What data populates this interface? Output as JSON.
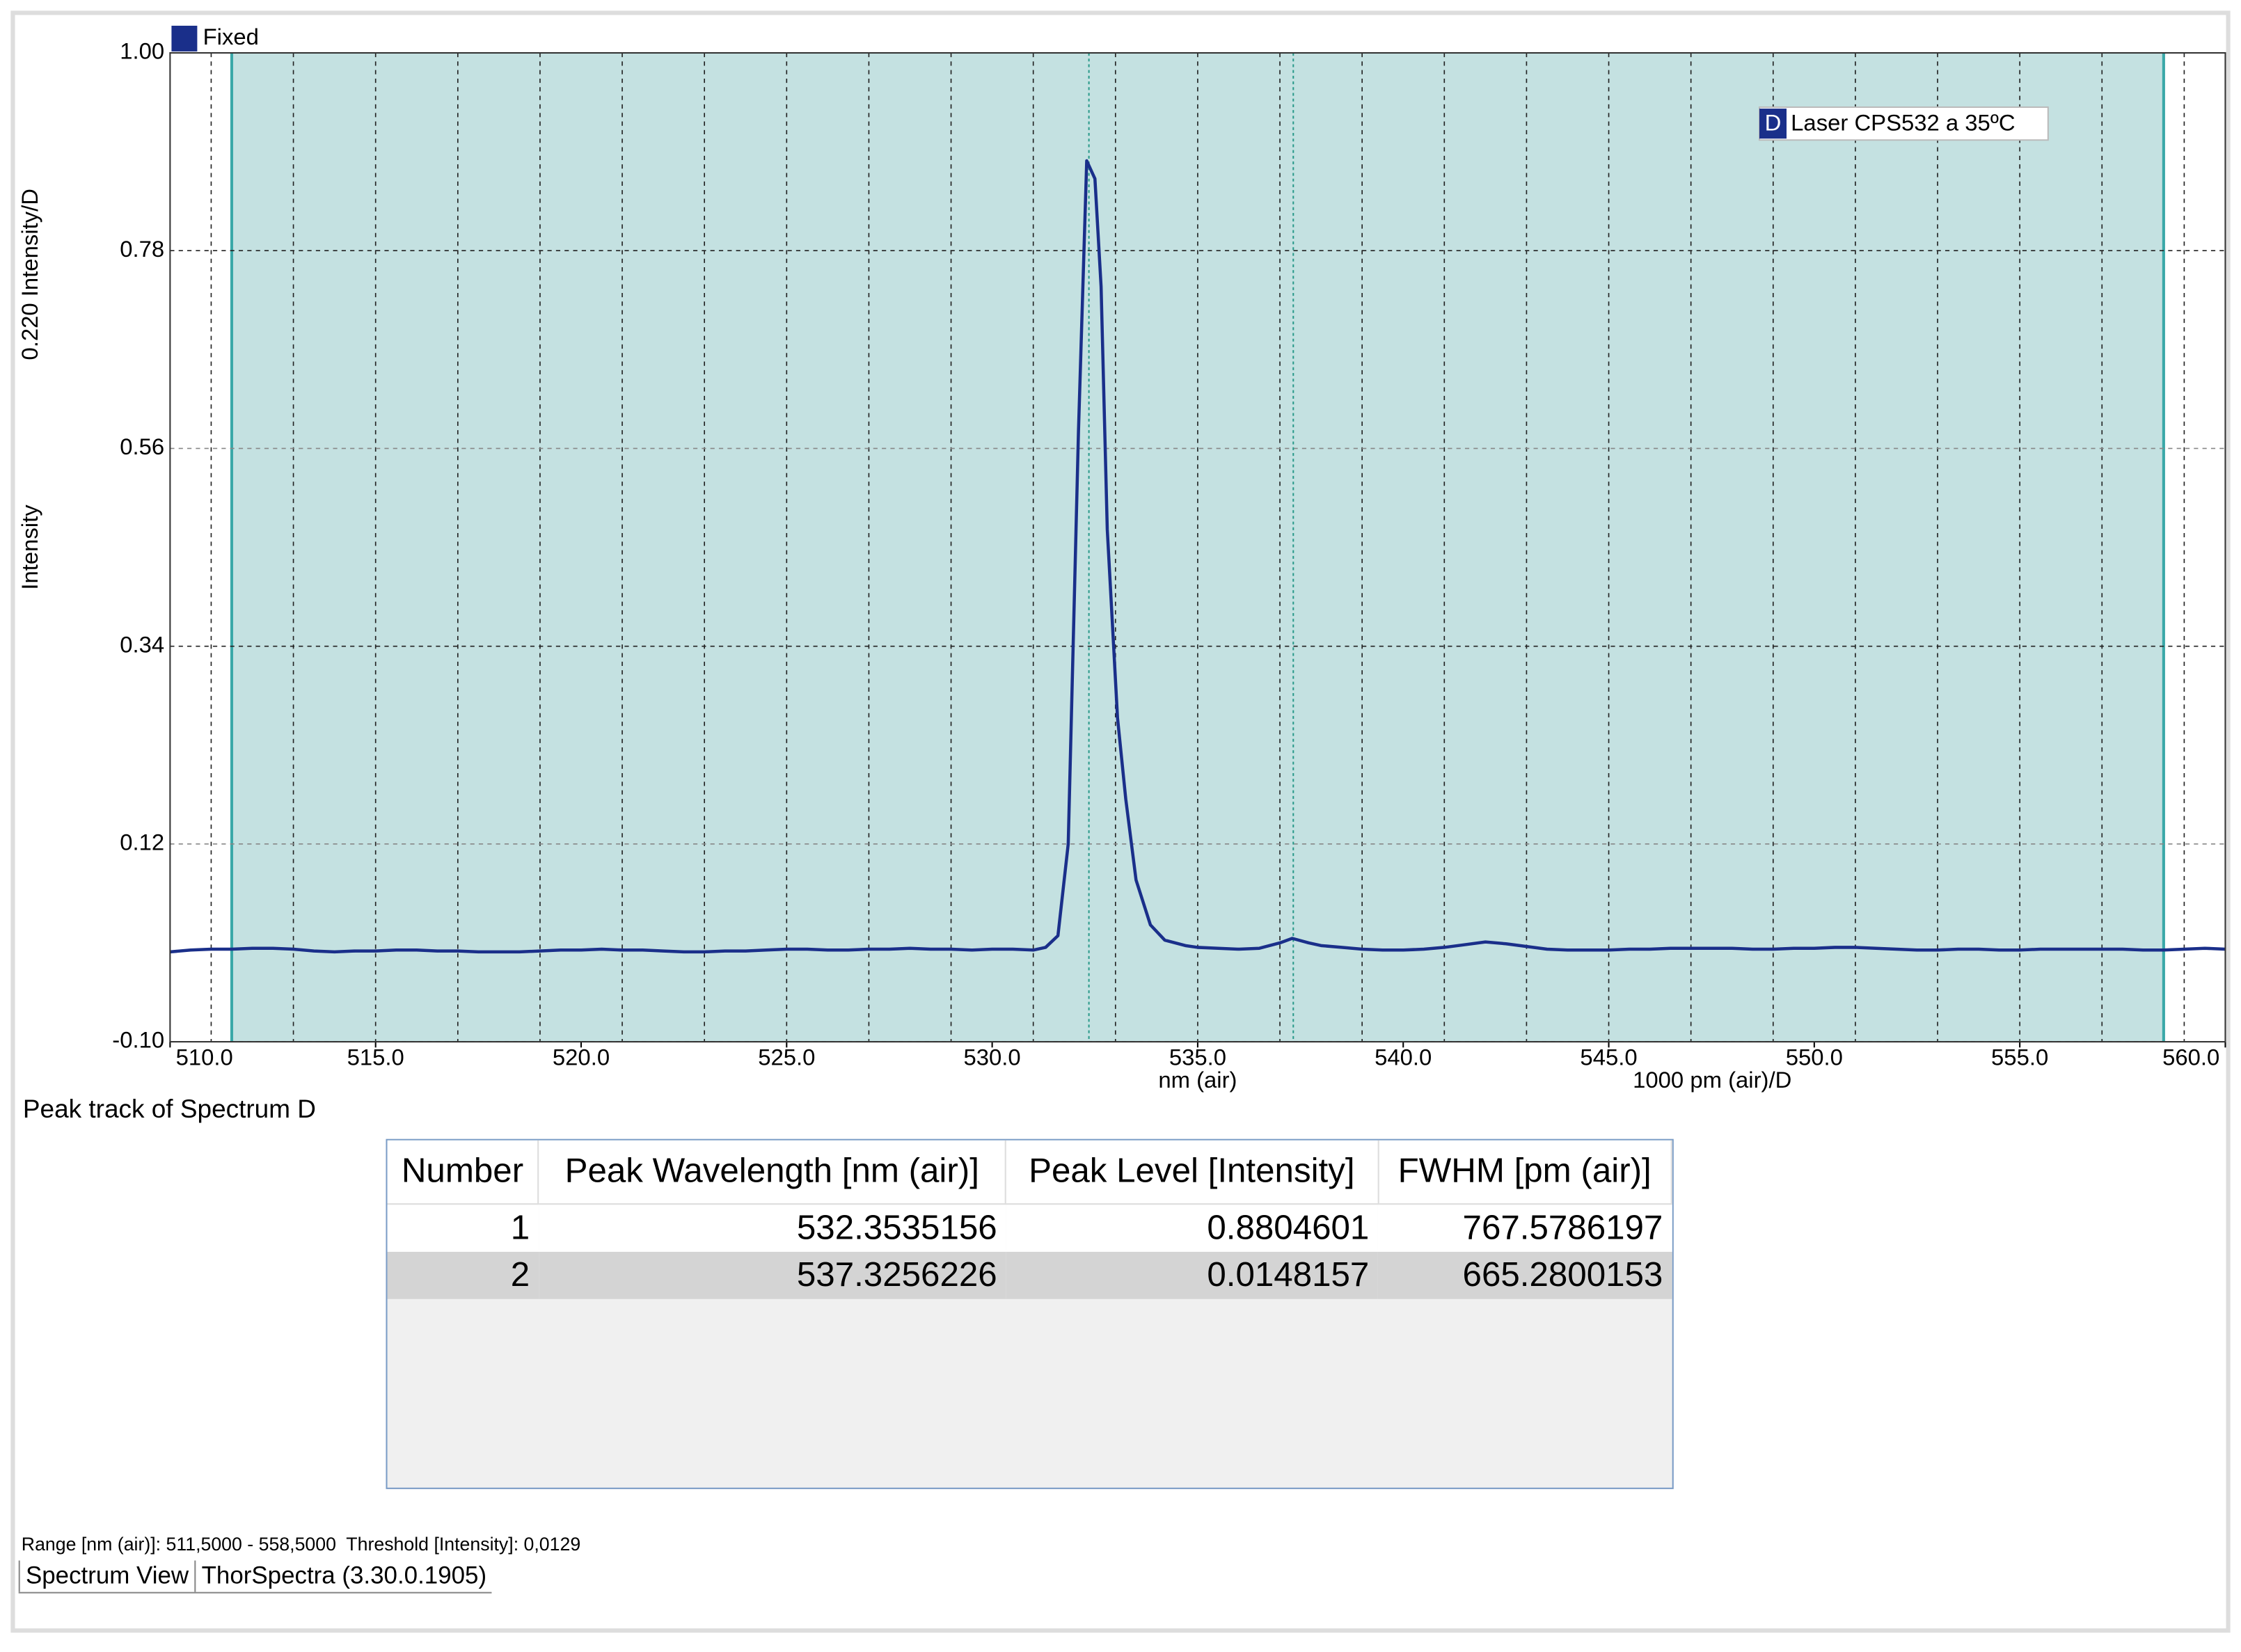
{
  "chart_data": {
    "type": "line",
    "fixed_label": "Fixed",
    "legend_marker": "D",
    "y_scale_label": "0.220 Intensity/D",
    "y_label": "Intensity",
    "x_label": "nm (air)",
    "x_scale_label": "1000 pm (air)/D",
    "x": [
      510,
      510.5,
      511,
      511.5,
      512,
      512.5,
      513,
      513.5,
      514,
      514.5,
      515,
      515.5,
      516,
      516.5,
      517,
      517.5,
      518,
      518.5,
      519,
      519.5,
      520,
      520.5,
      521,
      521.5,
      522,
      522.5,
      523,
      523.5,
      524,
      524.5,
      525,
      525.5,
      526,
      526.5,
      527,
      527.5,
      528,
      528.5,
      529,
      529.5,
      530,
      530.5,
      531,
      531.3,
      531.6,
      531.85,
      532.1,
      532.3,
      532.5,
      532.65,
      532.8,
      533.05,
      533.25,
      533.5,
      533.85,
      534.2,
      534.7,
      535,
      535.5,
      536,
      536.5,
      537,
      537.3,
      537.7,
      538,
      538.5,
      539,
      539.5,
      540,
      540.5,
      541,
      541.5,
      542,
      542.5,
      543,
      543.5,
      544,
      544.5,
      545,
      545.5,
      546,
      546.5,
      547,
      547.5,
      548,
      548.5,
      549,
      549.5,
      550,
      550.5,
      551,
      551.5,
      552,
      552.5,
      553,
      553.5,
      554,
      554.5,
      555,
      555.5,
      556,
      556.5,
      557,
      557.5,
      558,
      558.5,
      559,
      559.5,
      560
    ],
    "series": [
      {
        "name": "Laser CPS532 a 35ºC",
        "color": "#1a2f8a",
        "values": [
          0,
          0.002,
          0.003,
          0.003,
          0.004,
          0.004,
          0.003,
          0.001,
          0,
          0.001,
          0.001,
          0.002,
          0.002,
          0.001,
          0.001,
          0,
          0,
          0,
          0.001,
          0.002,
          0.002,
          0.003,
          0.002,
          0.002,
          0.001,
          0,
          0,
          0.001,
          0.001,
          0.002,
          0.003,
          0.003,
          0.002,
          0.002,
          0.003,
          0.003,
          0.004,
          0.003,
          0.003,
          0.002,
          0.003,
          0.003,
          0.002,
          0.005,
          0.018,
          0.12,
          0.58,
          0.88,
          0.86,
          0.74,
          0.47,
          0.26,
          0.17,
          0.08,
          0.03,
          0.013,
          0.007,
          0.005,
          0.004,
          0.003,
          0.004,
          0.01,
          0.015,
          0.01,
          0.007,
          0.005,
          0.003,
          0.002,
          0.002,
          0.003,
          0.005,
          0.008,
          0.011,
          0.009,
          0.006,
          0.003,
          0.002,
          0.002,
          0.002,
          0.003,
          0.003,
          0.004,
          0.004,
          0.004,
          0.004,
          0.003,
          0.003,
          0.004,
          0.004,
          0.005,
          0.005,
          0.004,
          0.003,
          0.002,
          0.002,
          0.003,
          0.003,
          0.002,
          0.002,
          0.003,
          0.003,
          0.003,
          0.003,
          0.003,
          0.002,
          0.002,
          0.003,
          0.004,
          0.003
        ]
      }
    ],
    "xlim": [
      510,
      560
    ],
    "ylim": [
      -0.1,
      1.0
    ],
    "xticks": [
      {
        "value": 510,
        "label": "510.0"
      },
      {
        "value": 515,
        "label": "515.0"
      },
      {
        "value": 520,
        "label": "520.0"
      },
      {
        "value": 525,
        "label": "525.0"
      },
      {
        "value": 530,
        "label": "530.0"
      },
      {
        "value": 535,
        "label": "535.0"
      },
      {
        "value": 540,
        "label": "540.0"
      },
      {
        "value": 545,
        "label": "545.0"
      },
      {
        "value": 550,
        "label": "550.0"
      },
      {
        "value": 555,
        "label": "555.0"
      },
      {
        "value": 560,
        "label": "560.0"
      }
    ],
    "yticks": [
      {
        "value": -0.1,
        "label": "-0.10"
      },
      0.12,
      0.34,
      0.56,
      0.78,
      {
        "value": 1,
        "label": "1.00"
      }
    ],
    "xgrid": [
      511,
      513,
      515,
      517,
      519,
      521,
      523,
      525,
      527,
      529,
      531,
      533,
      535,
      537,
      539,
      541,
      543,
      545,
      547,
      549,
      551,
      553,
      555,
      557,
      559
    ],
    "grid": true,
    "range": [
      511.5,
      558.5
    ],
    "range_color": "#c4e1e1"
  },
  "table": {
    "title": "Peak track of Spectrum D",
    "columns": [
      "Number",
      "Peak Wavelength [nm (air)]",
      "Peak Level [Intensity]",
      "FWHM [pm (air)]"
    ],
    "rows": [
      [
        "1",
        "532.3535156",
        "0.8804601",
        "767.5786197"
      ],
      [
        "2",
        "537.3256226",
        "0.0148157",
        "665.2800153"
      ]
    ]
  },
  "status": {
    "text": "Range [nm (air)]: 511,5000 - 558,5000  Threshold [Intensity]: 0,0129",
    "tabs": [
      "Spectrum View",
      "ThorSpectra (3.30.0.1905)"
    ]
  }
}
